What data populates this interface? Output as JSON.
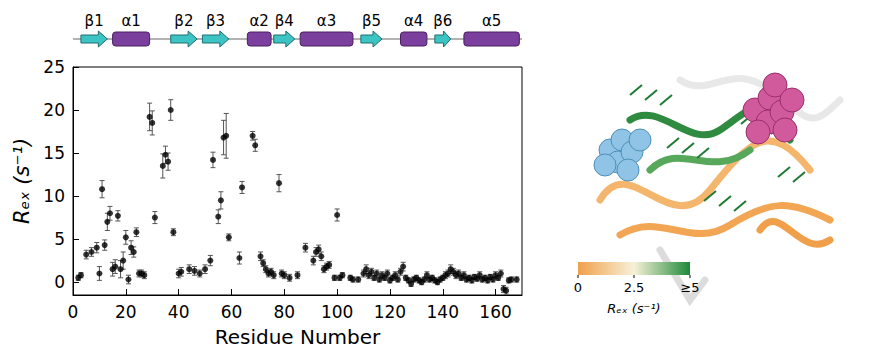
{
  "chart_data": {
    "type": "scatter",
    "xlabel": "Residue Number",
    "ylabel": "Rₑₓ (s⁻¹)",
    "xlim": [
      0,
      170
    ],
    "ylim": [
      -1.5,
      25
    ],
    "xticks": [
      0,
      20,
      40,
      60,
      80,
      100,
      120,
      140,
      160
    ],
    "yticks": [
      0,
      5,
      10,
      15,
      20,
      25
    ],
    "color": "#000000",
    "marker": "circle",
    "x": [
      2,
      3,
      5,
      7,
      9,
      10,
      11,
      12,
      13,
      14,
      15,
      16,
      17,
      18,
      19,
      20,
      21,
      22,
      23,
      24,
      25,
      26,
      27,
      29,
      30,
      31,
      34,
      35,
      36,
      37,
      38,
      40,
      41,
      44,
      46,
      48,
      50,
      52,
      53,
      55,
      56,
      57,
      58,
      59,
      63,
      64,
      68,
      69,
      71,
      72,
      73,
      74,
      75,
      76,
      78,
      79,
      80,
      82,
      85,
      88,
      91,
      92,
      93,
      94,
      95,
      96,
      97,
      99,
      100,
      101,
      102,
      105,
      106,
      108,
      110,
      111,
      112,
      113,
      114,
      115,
      116,
      117,
      118,
      119,
      120,
      121,
      122,
      123,
      124,
      125,
      126,
      127,
      128,
      129,
      130,
      131,
      132,
      133,
      134,
      135,
      136,
      137,
      138,
      139,
      140,
      141,
      142,
      143,
      144,
      145,
      146,
      147,
      148,
      149,
      150,
      151,
      152,
      153,
      154,
      155,
      156,
      157,
      158,
      159,
      160,
      161,
      162,
      163,
      164,
      165,
      166,
      168
    ],
    "values": [
      0.5,
      0.8,
      3.2,
      3.5,
      4.0,
      1.0,
      10.8,
      4.3,
      7.0,
      8.0,
      1.5,
      1.8,
      7.7,
      1.5,
      2.5,
      5.2,
      0.3,
      4.0,
      3.5,
      5.8,
      1.0,
      1.0,
      0.8,
      19.2,
      18.5,
      7.5,
      13.5,
      14.8,
      14.0,
      20.0,
      5.8,
      1.0,
      1.2,
      1.5,
      1.3,
      1.0,
      1.5,
      2.5,
      14.2,
      7.6,
      9.5,
      16.8,
      17.0,
      5.2,
      2.8,
      11.0,
      17.0,
      15.9,
      3.0,
      2.2,
      1.5,
      1.0,
      1.2,
      0.8,
      11.5,
      1.0,
      0.8,
      0.5,
      0.8,
      4.0,
      2.5,
      3.5,
      3.8,
      3.0,
      1.5,
      1.8,
      2.0,
      0.5,
      7.8,
      0.5,
      0.8,
      0.5,
      0.3,
      0.3,
      1.0,
      1.5,
      0.8,
      1.2,
      0.5,
      1.0,
      0.3,
      0.8,
      0.5,
      1.0,
      0.2,
      0.5,
      0.8,
      0.3,
      1.2,
      1.8,
      0.5,
      0.2,
      -0.2,
      0.3,
      0.5,
      0.2,
      0.0,
      0.3,
      0.8,
      0.3,
      0.5,
      0.2,
      0.0,
      0.3,
      0.5,
      0.8,
      1.0,
      1.5,
      1.2,
      0.8,
      1.0,
      0.5,
      0.8,
      0.3,
      0.5,
      0.2,
      0.6,
      0.4,
      0.8,
      0.3,
      0.5,
      0.2,
      0.6,
      0.3,
      0.8,
      0.5,
      1.0,
      -0.8,
      -1.0,
      0.2,
      0.3,
      0.3
    ],
    "errors": [
      0.3,
      0.3,
      0.5,
      0.5,
      0.6,
      0.8,
      1.0,
      0.6,
      1.0,
      0.8,
      0.8,
      0.8,
      0.6,
      1.0,
      1.0,
      0.8,
      0.5,
      0.8,
      0.6,
      0.5,
      0.4,
      0.4,
      0.4,
      1.6,
      1.4,
      0.7,
      1.4,
      1.0,
      1.0,
      1.2,
      0.4,
      0.5,
      0.5,
      0.5,
      0.5,
      0.4,
      0.5,
      0.6,
      0.9,
      0.8,
      1.0,
      2.0,
      2.6,
      0.4,
      0.7,
      0.7,
      0.5,
      0.7,
      0.5,
      0.4,
      0.4,
      0.4,
      0.4,
      0.4,
      1.0,
      0.4,
      0.4,
      0.4,
      0.4,
      0.5,
      0.5,
      0.5,
      0.5,
      0.5,
      0.4,
      0.4,
      0.4,
      0.3,
      0.7,
      0.3,
      0.3,
      0.3,
      0.3,
      0.3,
      0.4,
      0.5,
      0.4,
      0.4,
      0.3,
      0.4,
      0.3,
      0.4,
      0.3,
      0.4,
      0.3,
      0.3,
      0.4,
      0.3,
      0.4,
      0.5,
      0.3,
      0.3,
      0.3,
      0.3,
      0.3,
      0.3,
      0.3,
      0.3,
      0.4,
      0.3,
      0.3,
      0.3,
      0.3,
      0.3,
      0.3,
      0.4,
      0.4,
      0.5,
      0.4,
      0.4,
      0.4,
      0.3,
      0.4,
      0.3,
      0.3,
      0.3,
      0.3,
      0.3,
      0.4,
      0.3,
      0.3,
      0.3,
      0.3,
      0.3,
      0.4,
      0.3,
      0.4,
      0.4,
      0.4,
      0.3,
      0.3,
      0.3
    ],
    "secondary_structure": [
      {
        "label": "β1",
        "kind": "strand",
        "start": 3,
        "end": 13
      },
      {
        "label": "α1",
        "kind": "helix",
        "start": 15,
        "end": 29
      },
      {
        "label": "β2",
        "kind": "strand",
        "start": 37,
        "end": 47
      },
      {
        "label": "β3",
        "kind": "strand",
        "start": 49,
        "end": 59
      },
      {
        "label": "α2",
        "kind": "helix",
        "start": 66,
        "end": 75
      },
      {
        "label": "β4",
        "kind": "strand",
        "start": 76,
        "end": 84
      },
      {
        "label": "α3",
        "kind": "helix",
        "start": 86,
        "end": 106
      },
      {
        "label": "β5",
        "kind": "strand",
        "start": 109,
        "end": 117
      },
      {
        "label": "α4",
        "kind": "helix",
        "start": 124,
        "end": 134
      },
      {
        "label": "β6",
        "kind": "strand",
        "start": 137,
        "end": 143
      },
      {
        "label": "α5",
        "kind": "helix",
        "start": 148,
        "end": 169
      }
    ],
    "colorbar": {
      "label": "Rₑₓ (s⁻¹)",
      "range": [
        0,
        5
      ],
      "ticks": [
        0,
        2.5,
        {
          "value": 5,
          "label": "≥5"
        }
      ],
      "colors": [
        "#f0a04b",
        "#f7f1d8",
        "#1f8a3a"
      ]
    }
  }
}
